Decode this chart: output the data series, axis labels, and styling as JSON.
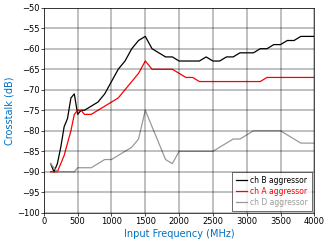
{
  "title": "",
  "xlabel": "Input Frequency (MHz)",
  "ylabel": "Crosstalk (dB)",
  "xlim": [
    0,
    4000
  ],
  "ylim": [
    -100,
    -50
  ],
  "yticks": [
    -100,
    -95,
    -90,
    -85,
    -80,
    -75,
    -70,
    -65,
    -60,
    -55,
    -50
  ],
  "xticks": [
    0,
    500,
    1000,
    1500,
    2000,
    2500,
    3000,
    3500,
    4000
  ],
  "ch_B": {
    "x": [
      100,
      150,
      200,
      250,
      300,
      350,
      400,
      450,
      500,
      550,
      600,
      700,
      800,
      900,
      1000,
      1100,
      1200,
      1300,
      1400,
      1500,
      1600,
      1700,
      1800,
      1900,
      2000,
      2100,
      2200,
      2300,
      2400,
      2500,
      2600,
      2700,
      2800,
      2900,
      3000,
      3100,
      3200,
      3300,
      3400,
      3500,
      3600,
      3700,
      3800,
      3900,
      4000
    ],
    "y": [
      -88,
      -90,
      -88,
      -84,
      -79,
      -77,
      -72,
      -71,
      -76,
      -75,
      -75,
      -74,
      -73,
      -71,
      -68,
      -65,
      -63,
      -60,
      -58,
      -57,
      -60,
      -61,
      -62,
      -62,
      -63,
      -63,
      -63,
      -63,
      -62,
      -63,
      -63,
      -62,
      -62,
      -61,
      -61,
      -61,
      -60,
      -60,
      -59,
      -59,
      -58,
      -58,
      -57,
      -57,
      -57
    ],
    "color": "#000000",
    "label": "ch B aggressor"
  },
  "ch_A": {
    "x": [
      100,
      150,
      200,
      250,
      300,
      350,
      400,
      450,
      500,
      550,
      600,
      700,
      800,
      900,
      1000,
      1100,
      1200,
      1300,
      1400,
      1500,
      1600,
      1700,
      1800,
      1900,
      2000,
      2100,
      2200,
      2300,
      2400,
      2500,
      2600,
      2700,
      2800,
      2900,
      3000,
      3100,
      3200,
      3300,
      3400,
      3500,
      3600,
      3700,
      3800,
      3900,
      4000
    ],
    "y": [
      -90,
      -90,
      -90,
      -88,
      -86,
      -83,
      -80,
      -76,
      -75,
      -75,
      -76,
      -76,
      -75,
      -74,
      -73,
      -72,
      -70,
      -68,
      -66,
      -63,
      -65,
      -65,
      -65,
      -65,
      -66,
      -67,
      -67,
      -68,
      -68,
      -68,
      -68,
      -68,
      -68,
      -68,
      -68,
      -68,
      -68,
      -67,
      -67,
      -67,
      -67,
      -67,
      -67,
      -67,
      -67
    ],
    "color": "#ff0000",
    "label": "ch A aggressor"
  },
  "ch_D": {
    "x": [
      100,
      150,
      200,
      250,
      300,
      350,
      400,
      450,
      500,
      550,
      600,
      700,
      800,
      900,
      1000,
      1100,
      1200,
      1300,
      1400,
      1500,
      1600,
      1700,
      1800,
      1900,
      2000,
      2100,
      2200,
      2300,
      2400,
      2500,
      2600,
      2700,
      2800,
      2900,
      3000,
      3100,
      3200,
      3300,
      3400,
      3500,
      3600,
      3700,
      3800,
      3900,
      4000
    ],
    "y": [
      -88,
      -89,
      -90,
      -90,
      -90,
      -90,
      -90,
      -90,
      -89,
      -89,
      -89,
      -89,
      -88,
      -87,
      -87,
      -86,
      -85,
      -84,
      -82,
      -75,
      -79,
      -83,
      -87,
      -88,
      -85,
      -85,
      -85,
      -85,
      -85,
      -85,
      -84,
      -83,
      -82,
      -82,
      -81,
      -80,
      -80,
      -80,
      -80,
      -80,
      -81,
      -82,
      -83,
      -83,
      -83
    ],
    "color": "#999999",
    "label": "ch D aggressor"
  },
  "bg_color": "#ffffff",
  "label_color": "#0070c0",
  "tick_color": "#000000",
  "tick_label_size": 6,
  "xlabel_size": 7,
  "ylabel_size": 7,
  "legend_fontsize": 5.5
}
